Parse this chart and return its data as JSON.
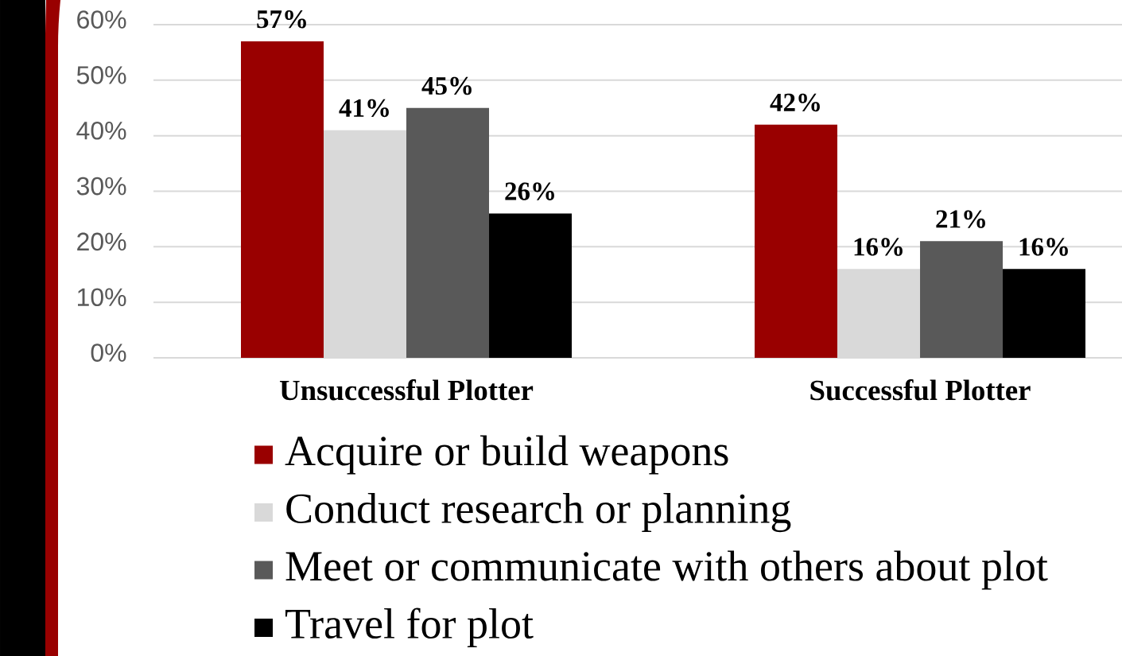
{
  "chart_data": {
    "type": "bar",
    "categories": [
      "Unsuccessful Plotter",
      "Successful Plotter"
    ],
    "series": [
      {
        "name": "Acquire or build weapons",
        "color": "#990000",
        "values": [
          57,
          42
        ],
        "value_labels": [
          "57%",
          "42%"
        ]
      },
      {
        "name": "Conduct research or planning",
        "color": "#d9d9d9",
        "values": [
          41,
          16
        ],
        "value_labels": [
          "41%",
          "16%"
        ]
      },
      {
        "name": "Meet or communicate with others about plot",
        "color": "#595959",
        "values": [
          45,
          21
        ],
        "value_labels": [
          "45%",
          "21%"
        ]
      },
      {
        "name": "Travel for plot",
        "color": "#000000",
        "values": [
          26,
          16
        ],
        "value_labels": [
          "26%",
          "16%"
        ]
      }
    ],
    "ylim": [
      0,
      60
    ],
    "yticks": [
      {
        "value": 0,
        "label": "0%"
      },
      {
        "value": 10,
        "label": "10%"
      },
      {
        "value": 20,
        "label": "20%"
      },
      {
        "value": 30,
        "label": "30%"
      },
      {
        "value": 40,
        "label": "40%"
      },
      {
        "value": 50,
        "label": "50%"
      },
      {
        "value": 60,
        "label": "60%"
      }
    ],
    "grid": "y",
    "legend": "bottom"
  }
}
